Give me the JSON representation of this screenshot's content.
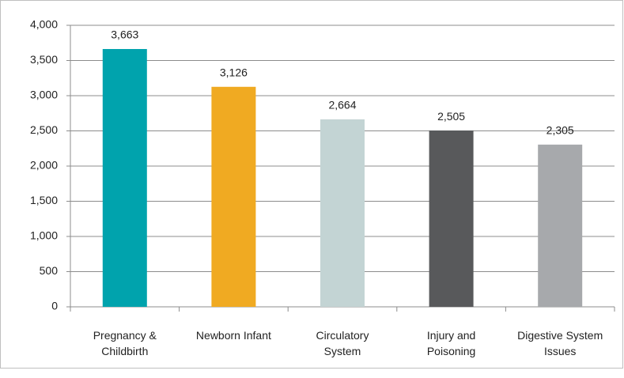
{
  "chart_data": {
    "type": "bar",
    "categories": [
      [
        "Pregnancy &",
        "Childbirth"
      ],
      [
        "Newborn Infant"
      ],
      [
        "Circulatory",
        "System"
      ],
      [
        "Injury and",
        "Poisoning"
      ],
      [
        "Digestive System",
        "Issues"
      ]
    ],
    "values": [
      3663,
      3126,
      2664,
      2505,
      2305
    ],
    "value_labels": [
      "3,663",
      "3,126",
      "2,664",
      "2,505",
      "2,305"
    ],
    "colors": [
      "#00a3ad",
      "#f0aa22",
      "#c3d4d4",
      "#58595b",
      "#a7a9ac"
    ],
    "ylim": [
      0,
      4000
    ],
    "yticks": [
      0,
      500,
      {
        "value": 1000,
        "label": "1,000"
      },
      {
        "value": 1500,
        "label": "1,500"
      },
      {
        "value": 2000,
        "label": "2,000"
      },
      {
        "value": 2500,
        "label": "2,500"
      },
      {
        "value": 3000,
        "label": "3,000"
      },
      {
        "value": 3500,
        "label": "3,500"
      },
      {
        "value": 4000,
        "label": "4,000"
      }
    ],
    "grid": true
  }
}
